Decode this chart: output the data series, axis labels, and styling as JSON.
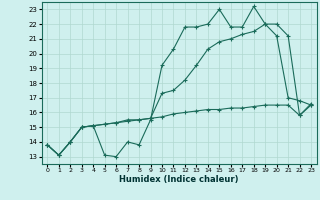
{
  "xlabel": "Humidex (Indice chaleur)",
  "bg_color": "#cff0ee",
  "grid_color": "#b0d8d0",
  "line_color": "#1a6b5a",
  "xlim": [
    -0.5,
    23.5
  ],
  "ylim": [
    12.5,
    23.5
  ],
  "yticks": [
    13,
    14,
    15,
    16,
    17,
    18,
    19,
    20,
    21,
    22,
    23
  ],
  "xticks": [
    0,
    1,
    2,
    3,
    4,
    5,
    6,
    7,
    8,
    9,
    10,
    11,
    12,
    13,
    14,
    15,
    16,
    17,
    18,
    19,
    20,
    21,
    22,
    23
  ],
  "line1_y": [
    13.8,
    13.1,
    14.0,
    15.0,
    15.1,
    13.1,
    13.0,
    14.0,
    13.8,
    15.5,
    19.2,
    20.3,
    21.8,
    21.8,
    22.0,
    23.0,
    21.8,
    21.8,
    23.2,
    22.0,
    21.2,
    17.0,
    16.8,
    16.5
  ],
  "line2_y": [
    13.8,
    13.1,
    14.0,
    15.0,
    15.1,
    15.2,
    15.3,
    15.5,
    15.5,
    15.6,
    17.3,
    17.5,
    18.2,
    19.2,
    20.3,
    20.8,
    21.0,
    21.3,
    21.5,
    22.0,
    22.0,
    21.2,
    15.8,
    16.6
  ],
  "line3_y": [
    13.8,
    13.1,
    14.0,
    15.0,
    15.1,
    15.2,
    15.3,
    15.4,
    15.5,
    15.6,
    15.7,
    15.9,
    16.0,
    16.1,
    16.2,
    16.2,
    16.3,
    16.3,
    16.4,
    16.5,
    16.5,
    16.5,
    15.8,
    16.5
  ]
}
